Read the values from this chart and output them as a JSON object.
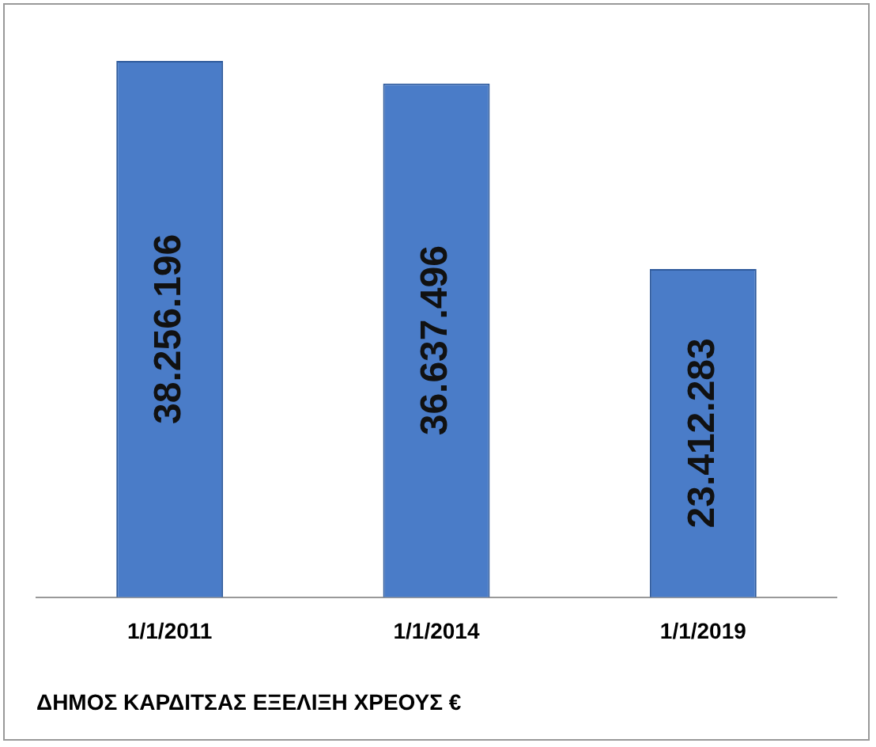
{
  "chart_data": {
    "type": "bar",
    "title": "ΔΗΜΟΣ ΚΑΡΔΙΤΣΑΣ ΕΞΕΛΙΞΗ ΧΡΕΟΥΣ €",
    "categories": [
      "1/1/2011",
      "1/1/2014",
      "1/1/2019"
    ],
    "values": [
      38256196,
      36637496,
      23412283
    ],
    "value_labels": [
      "38.256.196",
      "36.637.496",
      "23.412.283"
    ],
    "color": "#4a7cc8"
  }
}
